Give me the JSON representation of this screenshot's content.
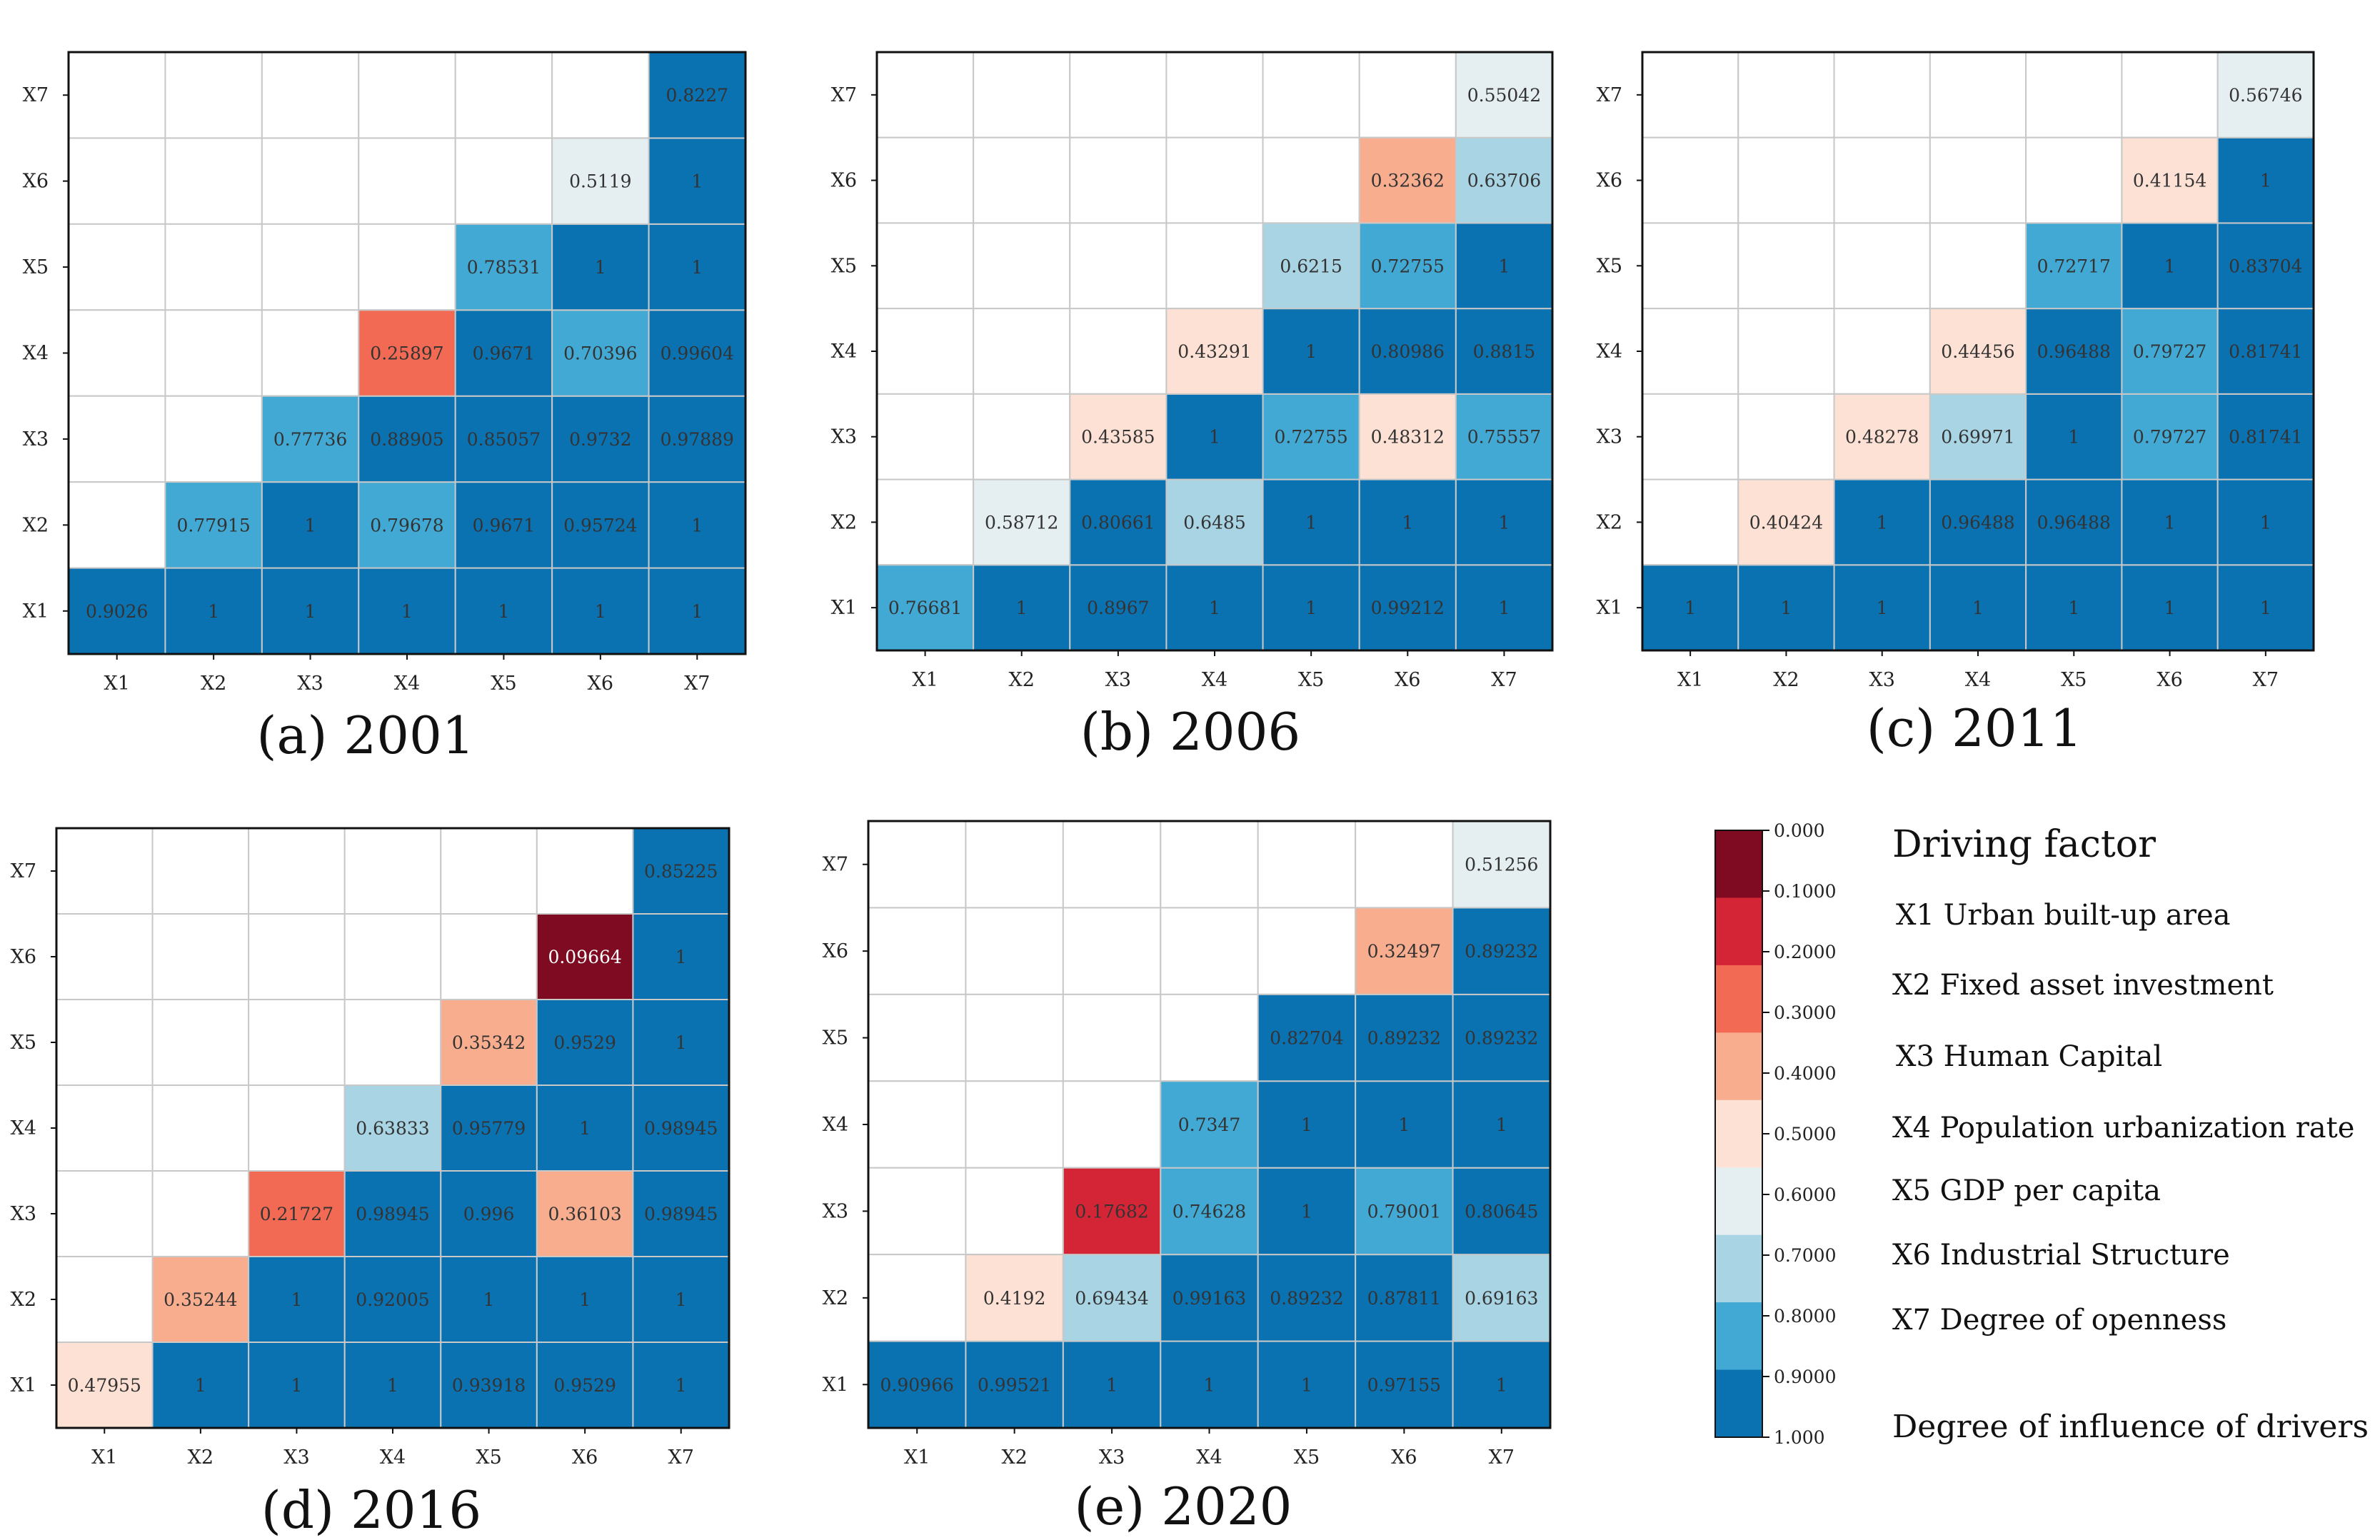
{
  "chart_data": [
    {
      "type": "heatmap",
      "title": "(a)  2001",
      "x_labels": [
        "X1",
        "X2",
        "X3",
        "X4",
        "X5",
        "X6",
        "X7"
      ],
      "y_labels": [
        "X1",
        "X2",
        "X3",
        "X4",
        "X5",
        "X6",
        "X7"
      ],
      "cells": [
        {
          "x": "X1",
          "y": "X1",
          "value": "0.9026"
        },
        {
          "x": "X2",
          "y": "X1",
          "value": "1"
        },
        {
          "x": "X3",
          "y": "X1",
          "value": "1"
        },
        {
          "x": "X4",
          "y": "X1",
          "value": "1"
        },
        {
          "x": "X5",
          "y": "X1",
          "value": "1"
        },
        {
          "x": "X6",
          "y": "X1",
          "value": "1"
        },
        {
          "x": "X7",
          "y": "X1",
          "value": "1"
        },
        {
          "x": "X2",
          "y": "X2",
          "value": "0.77915"
        },
        {
          "x": "X3",
          "y": "X2",
          "value": "1"
        },
        {
          "x": "X4",
          "y": "X2",
          "value": "0.79678"
        },
        {
          "x": "X5",
          "y": "X2",
          "value": "0.9671"
        },
        {
          "x": "X6",
          "y": "X2",
          "value": "0.95724"
        },
        {
          "x": "X7",
          "y": "X2",
          "value": "1"
        },
        {
          "x": "X3",
          "y": "X3",
          "value": "0.77736"
        },
        {
          "x": "X4",
          "y": "X3",
          "value": "0.88905"
        },
        {
          "x": "X5",
          "y": "X3",
          "value": "0.85057"
        },
        {
          "x": "X6",
          "y": "X3",
          "value": "0.9732"
        },
        {
          "x": "X7",
          "y": "X3",
          "value": "0.97889"
        },
        {
          "x": "X4",
          "y": "X4",
          "value": "0.25897"
        },
        {
          "x": "X5",
          "y": "X4",
          "value": "0.9671"
        },
        {
          "x": "X6",
          "y": "X4",
          "value": "0.70396"
        },
        {
          "x": "X7",
          "y": "X4",
          "value": "0.99604"
        },
        {
          "x": "X5",
          "y": "X5",
          "value": "0.78531"
        },
        {
          "x": "X6",
          "y": "X5",
          "value": "1"
        },
        {
          "x": "X7",
          "y": "X5",
          "value": "1"
        },
        {
          "x": "X6",
          "y": "X6",
          "value": "0.5119"
        },
        {
          "x": "X7",
          "y": "X6",
          "value": "1"
        },
        {
          "x": "X7",
          "y": "X7",
          "value": "0.8227"
        }
      ]
    },
    {
      "type": "heatmap",
      "title": "(b)  2006",
      "x_labels": [
        "X1",
        "X2",
        "X3",
        "X4",
        "X5",
        "X6",
        "X7"
      ],
      "y_labels": [
        "X1",
        "X2",
        "X3",
        "X4",
        "X5",
        "X6",
        "X7"
      ],
      "cells": [
        {
          "x": "X1",
          "y": "X1",
          "value": "0.76681"
        },
        {
          "x": "X2",
          "y": "X1",
          "value": "1"
        },
        {
          "x": "X3",
          "y": "X1",
          "value": "0.8967"
        },
        {
          "x": "X4",
          "y": "X1",
          "value": "1"
        },
        {
          "x": "X5",
          "y": "X1",
          "value": "1"
        },
        {
          "x": "X6",
          "y": "X1",
          "value": "0.99212"
        },
        {
          "x": "X7",
          "y": "X1",
          "value": "1"
        },
        {
          "x": "X2",
          "y": "X2",
          "value": "0.58712"
        },
        {
          "x": "X3",
          "y": "X2",
          "value": "0.80661"
        },
        {
          "x": "X4",
          "y": "X2",
          "value": "0.6485"
        },
        {
          "x": "X5",
          "y": "X2",
          "value": "1"
        },
        {
          "x": "X6",
          "y": "X2",
          "value": "1"
        },
        {
          "x": "X7",
          "y": "X2",
          "value": "1"
        },
        {
          "x": "X3",
          "y": "X3",
          "value": "0.43585"
        },
        {
          "x": "X4",
          "y": "X3",
          "value": "1"
        },
        {
          "x": "X5",
          "y": "X3",
          "value": "0.72755"
        },
        {
          "x": "X6",
          "y": "X3",
          "value": "0.48312"
        },
        {
          "x": "X7",
          "y": "X3",
          "value": "0.75557"
        },
        {
          "x": "X4",
          "y": "X4",
          "value": "0.43291"
        },
        {
          "x": "X5",
          "y": "X4",
          "value": "1"
        },
        {
          "x": "X6",
          "y": "X4",
          "value": "0.80986"
        },
        {
          "x": "X7",
          "y": "X4",
          "value": "0.8815"
        },
        {
          "x": "X5",
          "y": "X5",
          "value": "0.6215"
        },
        {
          "x": "X6",
          "y": "X5",
          "value": "0.72755"
        },
        {
          "x": "X7",
          "y": "X5",
          "value": "1"
        },
        {
          "x": "X6",
          "y": "X6",
          "value": "0.32362"
        },
        {
          "x": "X7",
          "y": "X6",
          "value": "0.63706"
        },
        {
          "x": "X7",
          "y": "X7",
          "value": "0.55042"
        }
      ]
    },
    {
      "type": "heatmap",
      "title": "(c)  2011",
      "x_labels": [
        "X1",
        "X2",
        "X3",
        "X4",
        "X5",
        "X6",
        "X7"
      ],
      "y_labels": [
        "X1",
        "X2",
        "X3",
        "X4",
        "X5",
        "X6",
        "X7"
      ],
      "cells": [
        {
          "x": "X1",
          "y": "X1",
          "value": "1"
        },
        {
          "x": "X2",
          "y": "X1",
          "value": "1"
        },
        {
          "x": "X3",
          "y": "X1",
          "value": "1"
        },
        {
          "x": "X4",
          "y": "X1",
          "value": "1"
        },
        {
          "x": "X5",
          "y": "X1",
          "value": "1"
        },
        {
          "x": "X6",
          "y": "X1",
          "value": "1"
        },
        {
          "x": "X7",
          "y": "X1",
          "value": "1"
        },
        {
          "x": "X2",
          "y": "X2",
          "value": "0.40424"
        },
        {
          "x": "X3",
          "y": "X2",
          "value": "1"
        },
        {
          "x": "X4",
          "y": "X2",
          "value": "0.96488"
        },
        {
          "x": "X5",
          "y": "X2",
          "value": "0.96488"
        },
        {
          "x": "X6",
          "y": "X2",
          "value": "1"
        },
        {
          "x": "X7",
          "y": "X2",
          "value": "1"
        },
        {
          "x": "X3",
          "y": "X3",
          "value": "0.48278"
        },
        {
          "x": "X4",
          "y": "X3",
          "value": "0.69971"
        },
        {
          "x": "X5",
          "y": "X3",
          "value": "1"
        },
        {
          "x": "X6",
          "y": "X3",
          "value": "0.79727"
        },
        {
          "x": "X7",
          "y": "X3",
          "value": "0.81741"
        },
        {
          "x": "X4",
          "y": "X4",
          "value": "0.44456"
        },
        {
          "x": "X5",
          "y": "X4",
          "value": "0.96488"
        },
        {
          "x": "X6",
          "y": "X4",
          "value": "0.79727"
        },
        {
          "x": "X7",
          "y": "X4",
          "value": "0.81741"
        },
        {
          "x": "X5",
          "y": "X5",
          "value": "0.72717"
        },
        {
          "x": "X6",
          "y": "X5",
          "value": "1"
        },
        {
          "x": "X7",
          "y": "X5",
          "value": "0.83704"
        },
        {
          "x": "X6",
          "y": "X6",
          "value": "0.41154"
        },
        {
          "x": "X7",
          "y": "X6",
          "value": "1"
        },
        {
          "x": "X7",
          "y": "X7",
          "value": "0.56746"
        }
      ]
    },
    {
      "type": "heatmap",
      "title": "(d)  2016",
      "x_labels": [
        "X1",
        "X2",
        "X3",
        "X4",
        "X5",
        "X6",
        "X7"
      ],
      "y_labels": [
        "X1",
        "X2",
        "X3",
        "X4",
        "X5",
        "X6",
        "X7"
      ],
      "cells": [
        {
          "x": "X1",
          "y": "X1",
          "value": "0.47955"
        },
        {
          "x": "X2",
          "y": "X1",
          "value": "1"
        },
        {
          "x": "X3",
          "y": "X1",
          "value": "1"
        },
        {
          "x": "X4",
          "y": "X1",
          "value": "1"
        },
        {
          "x": "X5",
          "y": "X1",
          "value": "0.93918"
        },
        {
          "x": "X6",
          "y": "X1",
          "value": "0.9529"
        },
        {
          "x": "X7",
          "y": "X1",
          "value": "1"
        },
        {
          "x": "X2",
          "y": "X2",
          "value": "0.35244"
        },
        {
          "x": "X3",
          "y": "X2",
          "value": "1"
        },
        {
          "x": "X4",
          "y": "X2",
          "value": "0.92005"
        },
        {
          "x": "X5",
          "y": "X2",
          "value": "1"
        },
        {
          "x": "X6",
          "y": "X2",
          "value": "1"
        },
        {
          "x": "X7",
          "y": "X2",
          "value": "1"
        },
        {
          "x": "X3",
          "y": "X3",
          "value": "0.21727"
        },
        {
          "x": "X4",
          "y": "X3",
          "value": "0.98945"
        },
        {
          "x": "X5",
          "y": "X3",
          "value": "0.996"
        },
        {
          "x": "X6",
          "y": "X3",
          "value": "0.36103"
        },
        {
          "x": "X7",
          "y": "X3",
          "value": "0.98945"
        },
        {
          "x": "X4",
          "y": "X4",
          "value": "0.63833"
        },
        {
          "x": "X5",
          "y": "X4",
          "value": "0.95779"
        },
        {
          "x": "X6",
          "y": "X4",
          "value": "1"
        },
        {
          "x": "X7",
          "y": "X4",
          "value": "0.98945"
        },
        {
          "x": "X5",
          "y": "X5",
          "value": "0.35342"
        },
        {
          "x": "X6",
          "y": "X5",
          "value": "0.9529"
        },
        {
          "x": "X7",
          "y": "X5",
          "value": "1"
        },
        {
          "x": "X6",
          "y": "X6",
          "value": "0.09664"
        },
        {
          "x": "X7",
          "y": "X6",
          "value": "1"
        },
        {
          "x": "X7",
          "y": "X7",
          "value": "0.85225"
        }
      ]
    },
    {
      "type": "heatmap",
      "title": "(e)  2020",
      "x_labels": [
        "X1",
        "X2",
        "X3",
        "X4",
        "X5",
        "X6",
        "X7"
      ],
      "y_labels": [
        "X1",
        "X2",
        "X3",
        "X4",
        "X5",
        "X6",
        "X7"
      ],
      "cells": [
        {
          "x": "X1",
          "y": "X1",
          "value": "0.90966"
        },
        {
          "x": "X2",
          "y": "X1",
          "value": "0.99521"
        },
        {
          "x": "X3",
          "y": "X1",
          "value": "1"
        },
        {
          "x": "X4",
          "y": "X1",
          "value": "1"
        },
        {
          "x": "X5",
          "y": "X1",
          "value": "1"
        },
        {
          "x": "X6",
          "y": "X1",
          "value": "0.97155"
        },
        {
          "x": "X7",
          "y": "X1",
          "value": "1"
        },
        {
          "x": "X2",
          "y": "X2",
          "value": "0.4192"
        },
        {
          "x": "X3",
          "y": "X2",
          "value": "0.69434"
        },
        {
          "x": "X4",
          "y": "X2",
          "value": "0.99163"
        },
        {
          "x": "X5",
          "y": "X2",
          "value": "0.89232"
        },
        {
          "x": "X6",
          "y": "X2",
          "value": "0.87811"
        },
        {
          "x": "X7",
          "y": "X2",
          "value": "0.69163"
        },
        {
          "x": "X3",
          "y": "X3",
          "value": "0.17682"
        },
        {
          "x": "X4",
          "y": "X3",
          "value": "0.74628"
        },
        {
          "x": "X5",
          "y": "X3",
          "value": "1"
        },
        {
          "x": "X6",
          "y": "X3",
          "value": "0.79001"
        },
        {
          "x": "X7",
          "y": "X3",
          "value": "0.80645"
        },
        {
          "x": "X4",
          "y": "X4",
          "value": "0.7347"
        },
        {
          "x": "X5",
          "y": "X4",
          "value": "1"
        },
        {
          "x": "X6",
          "y": "X4",
          "value": "1"
        },
        {
          "x": "X7",
          "y": "X4",
          "value": "1"
        },
        {
          "x": "X5",
          "y": "X5",
          "value": "0.82704"
        },
        {
          "x": "X6",
          "y": "X5",
          "value": "0.89232"
        },
        {
          "x": "X7",
          "y": "X5",
          "value": "0.89232"
        },
        {
          "x": "X6",
          "y": "X6",
          "value": "0.32497"
        },
        {
          "x": "X7",
          "y": "X6",
          "value": "0.89232"
        },
        {
          "x": "X7",
          "y": "X7",
          "value": "0.51256"
        }
      ]
    }
  ],
  "colorbar": {
    "ticks": [
      "0.000",
      "0.1000",
      "0.2000",
      "0.3000",
      "0.4000",
      "0.5000",
      "0.6000",
      "0.7000",
      "0.8000",
      "0.9000",
      "1.000"
    ],
    "colors": [
      "#7f0b22",
      "#d42536",
      "#f26a53",
      "#f9ad8f",
      "#fde1d4",
      "#e5eff1",
      "#a9d4e4",
      "#41a9d3",
      "#0b72b1"
    ]
  },
  "legend": {
    "title": "Driving factor",
    "items": [
      "X1 Urban built-up area",
      "X2 Fixed asset investment",
      "X3 Human Capital",
      "X4 Population urbanization rate",
      "X5 GDP per capita",
      "X6 Industrial Structure",
      "X7 Degree of openness"
    ],
    "footer": "Degree of influence of drivers"
  }
}
